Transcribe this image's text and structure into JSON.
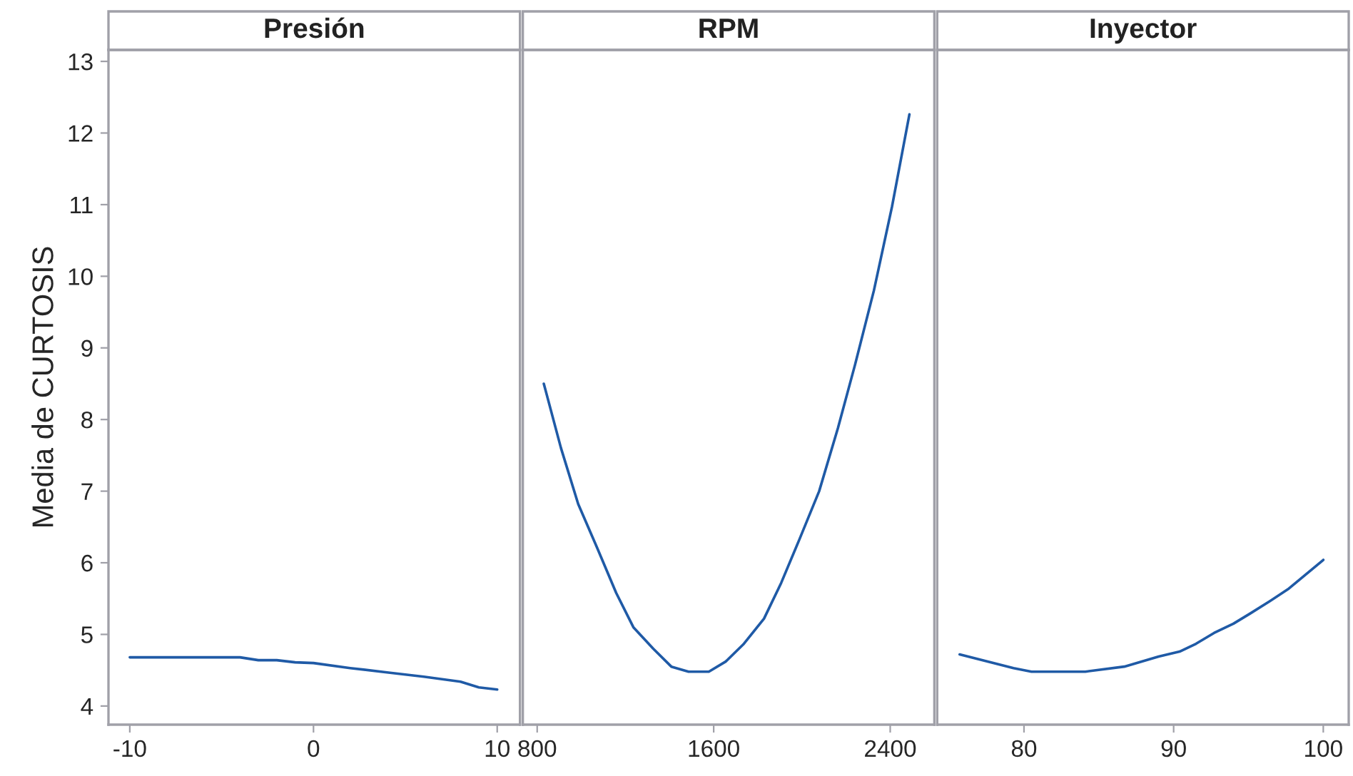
{
  "chart_data": [
    {
      "type": "line",
      "title": "Presión",
      "ylabel": "Media de CURTOSIS",
      "xlim": [
        -11.16,
        11.24
      ],
      "xticks": [
        {
          "value": -10,
          "label": "-10"
        },
        0,
        10
      ],
      "ylim": [
        3.74,
        13.16
      ],
      "yticks": [
        4,
        5,
        6,
        7,
        8,
        9,
        10,
        11,
        12,
        13
      ],
      "grid": false,
      "legend": false,
      "series": [
        {
          "color": "#1f5aa6",
          "x": [
            -10,
            -4,
            -3,
            -2,
            -1,
            0,
            2,
            4,
            6,
            8,
            9,
            10
          ],
          "values": [
            4.68,
            4.68,
            4.64,
            4.64,
            4.61,
            4.6,
            4.53,
            4.47,
            4.41,
            4.34,
            4.26,
            4.23
          ]
        }
      ]
    },
    {
      "type": "line",
      "title": "RPM",
      "xlim": [
        735,
        2600
      ],
      "xticks": [
        800,
        1600,
        2400
      ],
      "ylim": [
        3.74,
        13.16
      ],
      "yticks": [
        4,
        5,
        6,
        7,
        8,
        9,
        10,
        11,
        12,
        13
      ],
      "tick_labels": "x",
      "grid": false,
      "legend": false,
      "series": [
        {
          "color": "#1f5aa6",
          "x": [
            830,
            908,
            986,
            1073,
            1158,
            1236,
            1326,
            1408,
            1486,
            1578,
            1654,
            1734,
            1828,
            1906,
            1989,
            2078,
            2163,
            2241,
            2326,
            2408,
            2487
          ],
          "values": [
            8.5,
            7.6,
            6.82,
            6.2,
            5.58,
            5.1,
            4.8,
            4.55,
            4.48,
            4.48,
            4.62,
            4.86,
            5.22,
            5.72,
            6.33,
            7.0,
            7.88,
            8.77,
            9.8,
            10.97,
            12.26
          ]
        }
      ]
    },
    {
      "type": "line",
      "title": "Inyector",
      "xlim": [
        74.2,
        101.7
      ],
      "xticks": [
        80,
        90,
        100
      ],
      "ylim": [
        3.74,
        13.16
      ],
      "yticks": [
        4,
        5,
        6,
        7,
        8,
        9,
        10,
        11,
        12,
        13
      ],
      "tick_labels": "x",
      "grid": false,
      "legend": false,
      "series": [
        {
          "color": "#1f5aa6",
          "x": [
            75.7,
            79.3,
            80.5,
            84.1,
            86.7,
            89.0,
            90.4,
            91.5,
            92.7,
            94.0,
            95.1,
            96.4,
            97.7,
            100
          ],
          "values": [
            4.72,
            4.53,
            4.48,
            4.48,
            4.55,
            4.69,
            4.76,
            4.87,
            5.02,
            5.15,
            5.29,
            5.46,
            5.64,
            6.04
          ]
        }
      ]
    }
  ]
}
